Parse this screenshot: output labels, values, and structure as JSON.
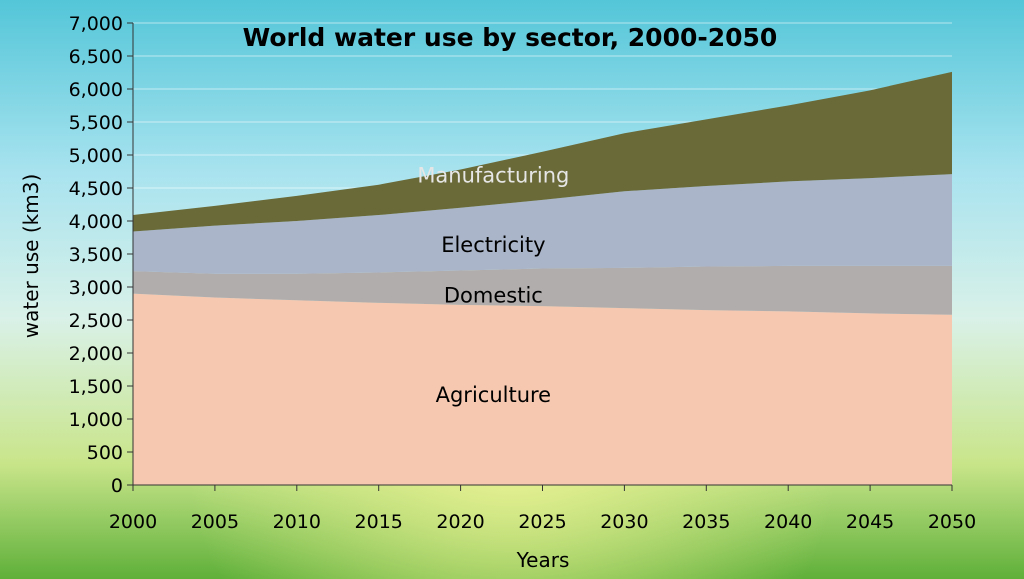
{
  "chart_data": {
    "type": "area",
    "stacked": true,
    "title": "World water use by sector, 2000-2050",
    "xlabel": "Years",
    "ylabel": "water use (km3)",
    "x": [
      2000,
      2005,
      2010,
      2015,
      2020,
      2025,
      2030,
      2035,
      2040,
      2045,
      2050
    ],
    "x_tick_labels": [
      "2000",
      "2005",
      "2010",
      "2015",
      "2020",
      "2025",
      "2030",
      "2035",
      "2040",
      "2045",
      "2050"
    ],
    "ylim": [
      0,
      7000
    ],
    "y_tick_labels": [
      "0",
      "500",
      "1,000",
      "1,500",
      "2,000",
      "2,500",
      "3,000",
      "3,500",
      "4,000",
      "4,500",
      "5,000",
      "5,500",
      "6,000",
      "6,500",
      "7,000"
    ],
    "grid": "horizontal",
    "legend": "none",
    "series": [
      {
        "name": "Agriculture",
        "color": "#f6c8b0",
        "label_color": "#000000",
        "values": [
          2900,
          2840,
          2800,
          2760,
          2730,
          2710,
          2680,
          2650,
          2630,
          2600,
          2580
        ]
      },
      {
        "name": "Domestic",
        "color": "#b1adad",
        "label_color": "#000000",
        "values": [
          340,
          360,
          400,
          460,
          520,
          570,
          610,
          660,
          690,
          720,
          740
        ]
      },
      {
        "name": "Electricity",
        "color": "#aab5c9",
        "label_color": "#000000",
        "values": [
          600,
          730,
          800,
          870,
          950,
          1040,
          1160,
          1220,
          1280,
          1330,
          1390
        ]
      },
      {
        "name": "Manufacturing",
        "color": "#6a6a38",
        "label_color": "#e6e6e6",
        "values": [
          250,
          300,
          380,
          460,
          580,
          730,
          880,
          1010,
          1150,
          1330,
          1550
        ]
      }
    ]
  }
}
